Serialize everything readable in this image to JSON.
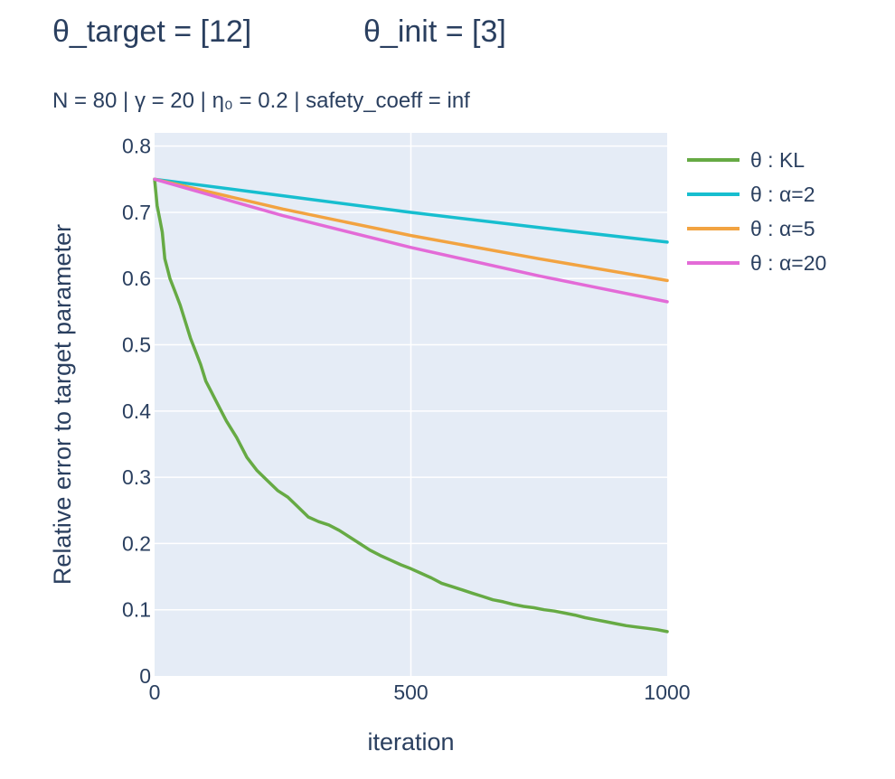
{
  "title_left": "θ_target = [12]",
  "title_right": "θ_init = [3]",
  "subtitle": "N = 80  |  γ = 20  | η₀ = 0.2  | safety_coeff = inf",
  "chart_data": {
    "type": "line",
    "title": "θ_target = [12]      θ_init = [3]",
    "subtitle": "N = 80  |  γ = 20  | η₀ = 0.2  | safety_coeff = inf",
    "xlabel": "iteration",
    "ylabel": "Relative error to target parameter",
    "xlim": [
      0,
      1000
    ],
    "ylim": [
      0,
      0.82
    ],
    "x_ticks": [
      0,
      500,
      1000
    ],
    "x_tick_labels": [
      "0",
      "500",
      "1000"
    ],
    "y_ticks": [
      0,
      0.1,
      0.2,
      0.3,
      0.4,
      0.5,
      0.6,
      0.7,
      0.8
    ],
    "y_tick_labels": [
      "0",
      "0.1",
      "0.2",
      "0.3",
      "0.4",
      "0.5",
      "0.6",
      "0.7",
      "0.8"
    ],
    "grid": true,
    "legend_position": "top-right outside",
    "plot_background": "#e5ecf6",
    "series": [
      {
        "name": "θ : KL",
        "color": "#66aa44",
        "x": [
          0,
          5,
          10,
          15,
          20,
          25,
          30,
          40,
          50,
          60,
          70,
          80,
          90,
          100,
          110,
          120,
          140,
          160,
          180,
          200,
          220,
          240,
          260,
          280,
          300,
          320,
          340,
          360,
          380,
          400,
          420,
          440,
          460,
          480,
          500,
          520,
          540,
          560,
          580,
          600,
          620,
          640,
          660,
          680,
          700,
          720,
          740,
          760,
          780,
          800,
          820,
          840,
          860,
          880,
          900,
          920,
          940,
          960,
          980,
          1000
        ],
        "y": [
          0.75,
          0.71,
          0.69,
          0.67,
          0.63,
          0.615,
          0.6,
          0.58,
          0.56,
          0.535,
          0.51,
          0.49,
          0.47,
          0.445,
          0.43,
          0.415,
          0.385,
          0.36,
          0.33,
          0.31,
          0.295,
          0.28,
          0.27,
          0.255,
          0.24,
          0.233,
          0.228,
          0.22,
          0.21,
          0.2,
          0.19,
          0.182,
          0.175,
          0.168,
          0.162,
          0.155,
          0.148,
          0.14,
          0.135,
          0.13,
          0.125,
          0.12,
          0.115,
          0.112,
          0.108,
          0.105,
          0.103,
          0.1,
          0.098,
          0.095,
          0.092,
          0.088,
          0.085,
          0.082,
          0.079,
          0.076,
          0.074,
          0.072,
          0.07,
          0.067
        ]
      },
      {
        "name": "θ : α=2",
        "color": "#17becf",
        "x": [
          0,
          250,
          500,
          750,
          1000
        ],
        "y": [
          0.75,
          0.725,
          0.7,
          0.677,
          0.655
        ]
      },
      {
        "name": "θ : α=5",
        "color": "#f2a341",
        "x": [
          0,
          250,
          500,
          750,
          1000
        ],
        "y": [
          0.75,
          0.705,
          0.665,
          0.63,
          0.597
        ]
      },
      {
        "name": "θ : α=20",
        "color": "#e36bd7",
        "x": [
          0,
          250,
          500,
          750,
          1000
        ],
        "y": [
          0.75,
          0.695,
          0.647,
          0.604,
          0.565
        ]
      }
    ]
  }
}
